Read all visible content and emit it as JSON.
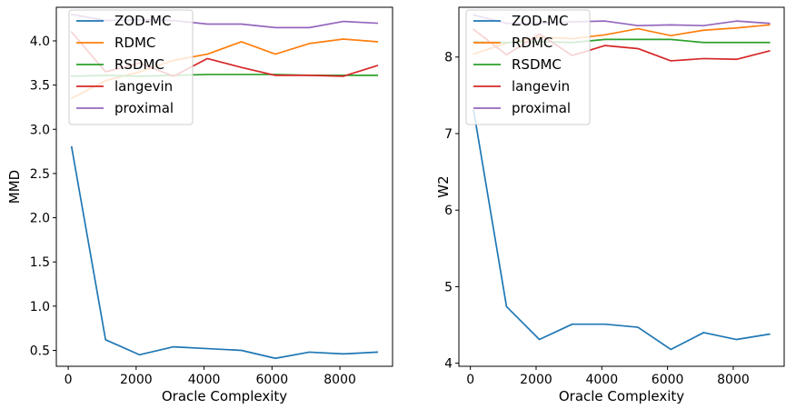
{
  "chart_data": [
    {
      "type": "line",
      "xlabel": "Oracle Complexity",
      "ylabel": "MMD",
      "xlim": [
        -350,
        9550
      ],
      "ylim": [
        0.32,
        4.38
      ],
      "xticks": [
        0,
        2000,
        4000,
        6000,
        8000
      ],
      "xtick_labels": [
        "0",
        "2000",
        "4000",
        "6000",
        "8000"
      ],
      "yticks": [
        0.5,
        1.0,
        1.5,
        2.0,
        2.5,
        3.0,
        3.5,
        4.0
      ],
      "ytick_labels": [
        "0.5",
        "1.0",
        "1.5",
        "2.0",
        "2.5",
        "3.0",
        "3.5",
        "4.0"
      ],
      "grid": false,
      "legend": "upper-left",
      "x": [
        100,
        1100,
        2100,
        3100,
        4100,
        5100,
        6100,
        7100,
        8100,
        9100
      ],
      "series": [
        {
          "name": "ZOD-MC",
          "color": "#1f77b4",
          "values": [
            2.8,
            0.62,
            0.45,
            0.54,
            0.52,
            0.5,
            0.41,
            0.48,
            0.46,
            0.48
          ]
        },
        {
          "name": "RDMC",
          "color": "#ff7f0e",
          "values": [
            3.35,
            3.55,
            3.65,
            3.78,
            3.85,
            3.99,
            3.85,
            3.97,
            4.02,
            3.99
          ]
        },
        {
          "name": "RSDMC",
          "color": "#2ca02c",
          "values": [
            3.6,
            3.61,
            3.6,
            3.61,
            3.62,
            3.62,
            3.62,
            3.61,
            3.61,
            3.61
          ]
        },
        {
          "name": "langevin",
          "color": "#d62728",
          "values": [
            4.1,
            3.65,
            3.75,
            3.6,
            3.8,
            3.7,
            3.61,
            3.61,
            3.6,
            3.72
          ]
        },
        {
          "name": "proximal",
          "color": "#9467bd",
          "values": [
            4.3,
            4.23,
            4.24,
            4.23,
            4.19,
            4.19,
            4.15,
            4.15,
            4.22,
            4.2
          ]
        }
      ]
    },
    {
      "type": "line",
      "xlabel": "Oracle Complexity",
      "ylabel": "W2",
      "xlim": [
        -350,
        9550
      ],
      "ylim": [
        3.96,
        8.65
      ],
      "xticks": [
        0,
        2000,
        4000,
        6000,
        8000
      ],
      "xtick_labels": [
        "0",
        "2000",
        "4000",
        "6000",
        "8000"
      ],
      "yticks": [
        4,
        5,
        6,
        7,
        8
      ],
      "ytick_labels": [
        "4",
        "5",
        "6",
        "7",
        "8"
      ],
      "grid": false,
      "legend": "upper-left",
      "x": [
        100,
        1100,
        2100,
        3100,
        4100,
        5100,
        6100,
        7100,
        8100,
        9100
      ],
      "series": [
        {
          "name": "ZOD-MC",
          "color": "#1f77b4",
          "values": [
            7.3,
            4.74,
            4.31,
            4.51,
            4.51,
            4.47,
            4.18,
            4.4,
            4.31,
            4.38
          ]
        },
        {
          "name": "RDMC",
          "color": "#ff7f0e",
          "values": [
            8.04,
            8.18,
            8.26,
            8.24,
            8.29,
            8.37,
            8.28,
            8.35,
            8.38,
            8.42
          ]
        },
        {
          "name": "RSDMC",
          "color": "#2ca02c",
          "values": [
            8.2,
            8.19,
            8.2,
            8.19,
            8.23,
            8.23,
            8.23,
            8.19,
            8.19,
            8.19
          ]
        },
        {
          "name": "langevin",
          "color": "#d62728",
          "values": [
            8.36,
            8.03,
            8.3,
            8.02,
            8.15,
            8.11,
            7.95,
            7.98,
            7.97,
            8.08
          ]
        },
        {
          "name": "proximal",
          "color": "#9467bd",
          "values": [
            8.55,
            8.44,
            8.44,
            8.46,
            8.47,
            8.41,
            8.42,
            8.41,
            8.47,
            8.44
          ]
        }
      ]
    }
  ]
}
